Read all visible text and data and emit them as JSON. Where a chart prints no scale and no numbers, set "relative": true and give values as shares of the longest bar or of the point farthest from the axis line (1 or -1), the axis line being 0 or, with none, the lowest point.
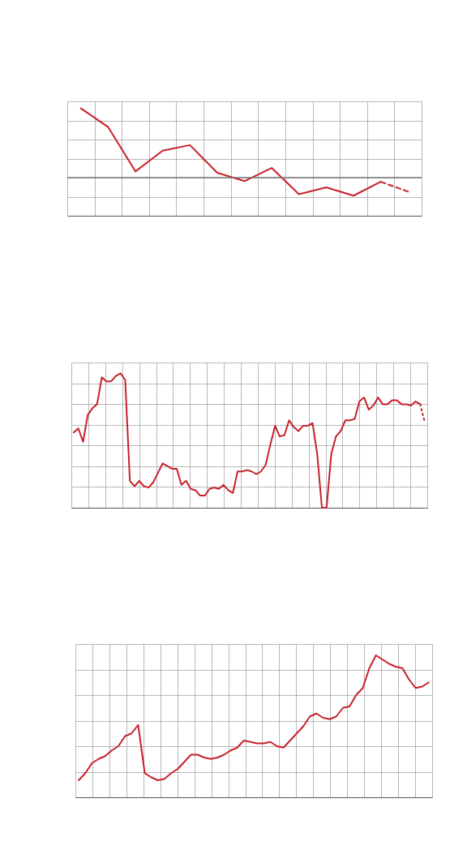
{
  "chart_data": [
    {
      "type": "line",
      "relative": true,
      "grid": true,
      "categories": [
        null,
        null,
        null,
        null,
        null,
        null,
        null,
        null,
        null,
        null,
        null,
        null,
        null
      ],
      "series": [
        {
          "color": "#c8202a",
          "line_style": "solid",
          "values": [
            1,
            0.73,
            0.09,
            0.39,
            0.47,
            0.07,
            -0.05,
            0.14,
            -0.24,
            -0.14,
            -0.26,
            -0.06,
            null
          ]
        },
        {
          "color": "#c8202a",
          "line_style": "dashed",
          "values": [
            null,
            null,
            null,
            null,
            null,
            null,
            null,
            null,
            null,
            null,
            null,
            -0.06,
            -0.2
          ]
        }
      ]
    },
    {
      "type": "line",
      "relative": true,
      "grid": true,
      "categories": [
        null,
        null,
        null,
        null,
        null,
        null,
        null,
        null,
        null,
        null,
        null,
        null,
        null,
        null,
        null,
        null,
        null,
        null,
        null,
        null,
        null,
        null,
        null,
        null,
        null,
        null,
        null,
        null,
        null,
        null,
        null,
        null,
        null,
        null,
        null,
        null,
        null,
        null,
        null,
        null,
        null,
        null,
        null,
        null,
        null,
        null,
        null,
        null,
        null,
        null,
        null,
        null,
        null,
        null,
        null,
        null,
        null,
        null,
        null,
        null,
        null,
        null,
        null,
        null,
        null,
        null,
        null,
        null,
        null,
        null,
        null,
        null,
        null,
        null,
        null,
        null
      ],
      "series": [
        {
          "color": "#c8202a",
          "line_style": "solid",
          "values": [
            0.56,
            0.59,
            0.49,
            0.69,
            0.74,
            0.77,
            0.97,
            0.94,
            0.94,
            0.98,
            1,
            0.95,
            0.2,
            0.16,
            0.2,
            0.16,
            0.15,
            0.19,
            0.26,
            0.33,
            0.31,
            0.29,
            0.29,
            0.17,
            0.2,
            0.14,
            0.13,
            0.09,
            0.09,
            0.14,
            0.15,
            0.14,
            0.17,
            0.13,
            0.11,
            0.27,
            0.27,
            0.28,
            0.27,
            0.25,
            0.27,
            0.32,
            0.47,
            0.61,
            0.53,
            0.54,
            0.65,
            0.6,
            0.57,
            0.61,
            0.61,
            0.63,
            0.4,
            0,
            0,
            0.4,
            0.53,
            0.57,
            0.65,
            0.65,
            0.66,
            0.79,
            0.82,
            0.73,
            0.76,
            0.82,
            0.77,
            0.77,
            0.8,
            0.8,
            0.77,
            0.77,
            0.76,
            0.79,
            0.77,
            null
          ]
        },
        {
          "color": "#c8202a",
          "line_style": "dotted",
          "values": [
            null,
            null,
            null,
            null,
            null,
            null,
            null,
            null,
            null,
            null,
            null,
            null,
            null,
            null,
            null,
            null,
            null,
            null,
            null,
            null,
            null,
            null,
            null,
            null,
            null,
            null,
            null,
            null,
            null,
            null,
            null,
            null,
            null,
            null,
            null,
            null,
            null,
            null,
            null,
            null,
            null,
            null,
            null,
            null,
            null,
            null,
            null,
            null,
            null,
            null,
            null,
            null,
            null,
            null,
            null,
            null,
            null,
            null,
            null,
            null,
            null,
            null,
            null,
            null,
            null,
            null,
            null,
            null,
            null,
            null,
            null,
            null,
            null,
            null,
            0.77,
            0.63
          ]
        }
      ]
    },
    {
      "type": "line",
      "relative": true,
      "grid": true,
      "categories": [
        null,
        null,
        null,
        null,
        null,
        null,
        null,
        null,
        null,
        null,
        null,
        null,
        null,
        null,
        null,
        null,
        null,
        null,
        null,
        null,
        null,
        null,
        null,
        null,
        null,
        null,
        null,
        null,
        null,
        null,
        null,
        null,
        null,
        null,
        null,
        null,
        null,
        null,
        null,
        null,
        null,
        null,
        null,
        null,
        null,
        null,
        null,
        null,
        null,
        null,
        null,
        null,
        null,
        null
      ],
      "series": [
        {
          "color": "#c8202a",
          "line_style": "solid",
          "values": [
            0.12,
            0.17,
            0.24,
            0.27,
            0.29,
            0.33,
            0.36,
            0.43,
            0.45,
            0.51,
            0.17,
            0.14,
            0.12,
            0.13,
            0.17,
            0.2,
            0.25,
            0.3,
            0.3,
            0.28,
            0.27,
            0.28,
            0.3,
            0.33,
            0.35,
            0.4,
            0.39,
            0.38,
            0.38,
            0.39,
            0.36,
            0.35,
            0.4,
            0.45,
            0.5,
            0.57,
            0.59,
            0.56,
            0.55,
            0.57,
            0.63,
            0.64,
            0.72,
            0.77,
            0.91,
            1,
            0.97,
            0.94,
            0.92,
            0.91,
            0.83,
            0.77,
            0.78,
            0.81
          ]
        }
      ]
    }
  ]
}
